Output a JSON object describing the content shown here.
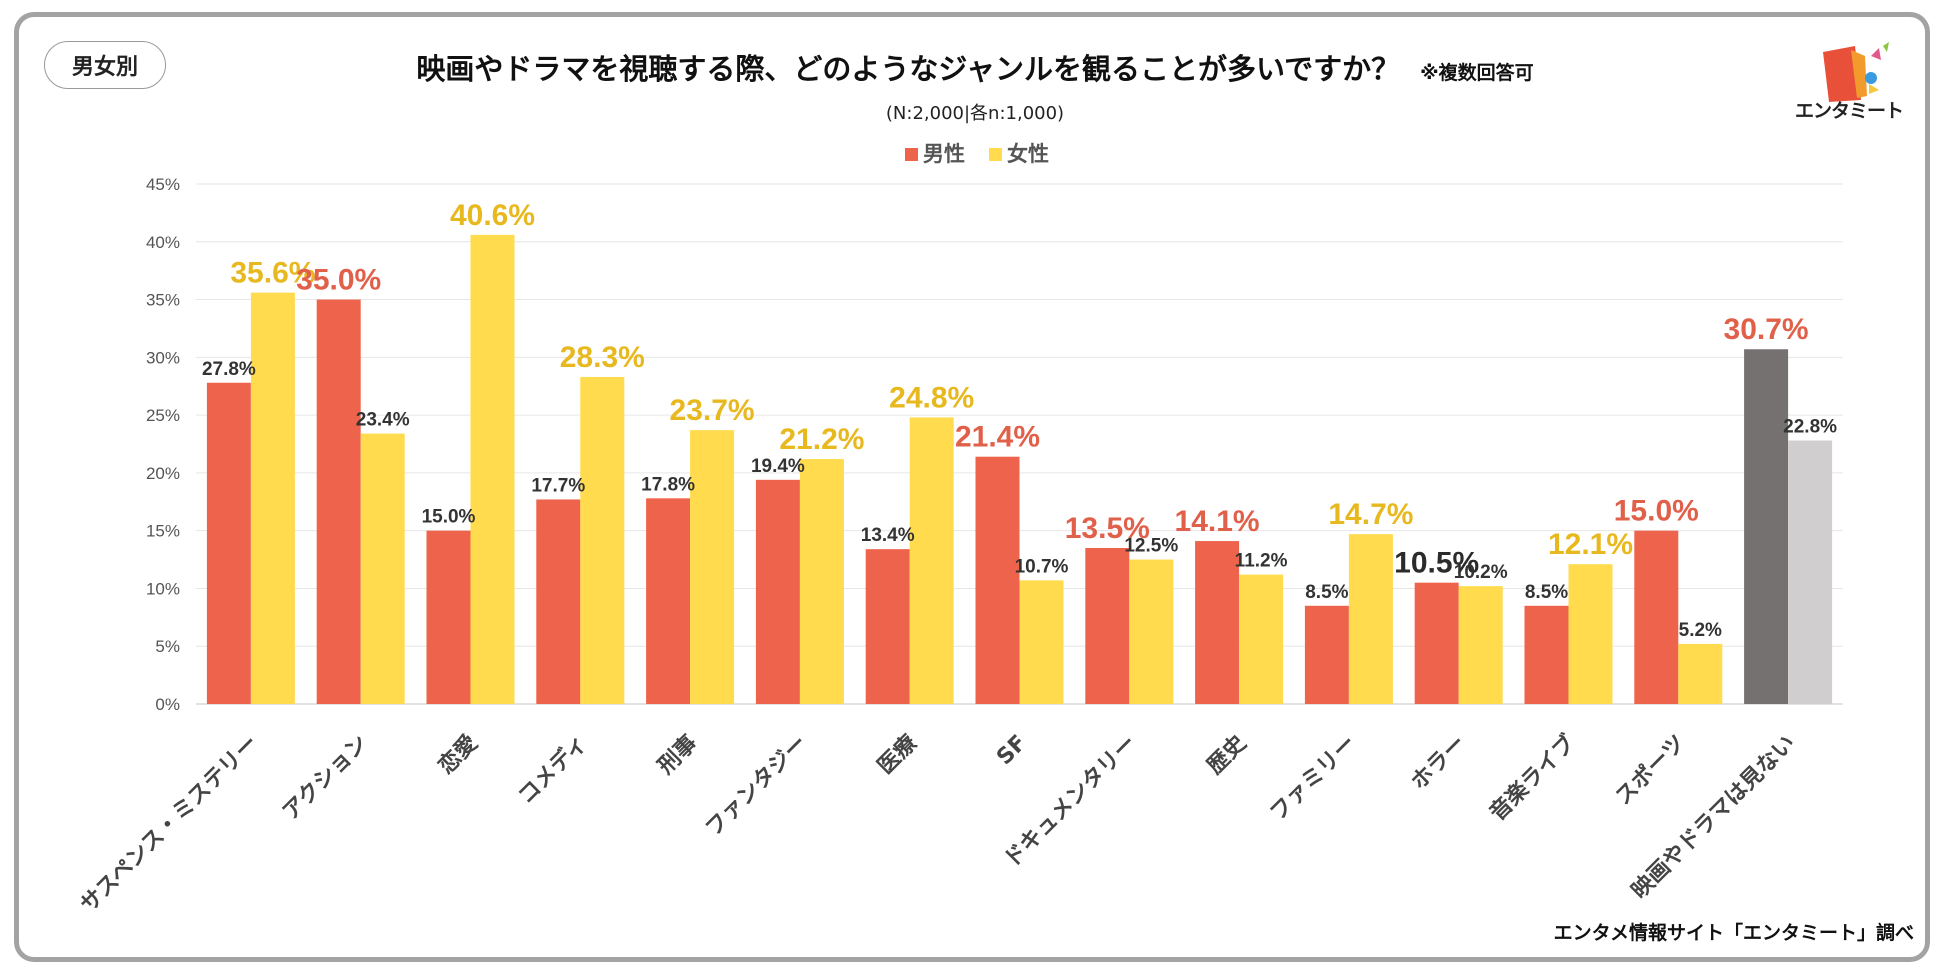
{
  "badge": "男女別",
  "title": "映画やドラマを視聴する際、どのようなジャンルを観ることが多いですか？",
  "title_note": "※複数回答可",
  "subtitle": "(N:2,000|各n:1,000)",
  "logo_text": "エンタミート",
  "source": "エンタメ情報サイト「エンタミート」調べ",
  "colors": {
    "male": "#ee634b",
    "female": "#ffdb4d",
    "male_none": "#767171",
    "female_none": "#d0cece",
    "highlight_male_label": "#e0604a",
    "highlight_female_label": "#e8b81f",
    "normal_label": "#333333"
  },
  "chart_data": {
    "type": "bar",
    "categories": [
      "サスペンス・ミステリー",
      "アクション",
      "恋愛",
      "コメディ",
      "刑事",
      "ファンタジー",
      "医療",
      "SF",
      "ドキュメンタリー",
      "歴史",
      "ファミリー",
      "ホラー",
      "音楽ライブ",
      "スポーツ",
      "映画やドラマは見ない"
    ],
    "series": [
      {
        "name": "男性",
        "values": [
          27.8,
          35.0,
          15.0,
          17.7,
          17.8,
          19.4,
          13.4,
          21.4,
          13.5,
          14.1,
          8.5,
          10.5,
          8.5,
          15.0,
          30.7
        ]
      },
      {
        "name": "女性",
        "values": [
          35.6,
          23.4,
          40.6,
          28.3,
          23.7,
          21.2,
          24.8,
          10.7,
          12.5,
          11.2,
          14.7,
          10.2,
          12.1,
          5.2,
          22.8
        ]
      }
    ],
    "data_labels": [
      [
        "27.8%",
        "35.6%"
      ],
      [
        "35.0%",
        "23.4%"
      ],
      [
        "15.0%",
        "40.6%"
      ],
      [
        "17.7%",
        "28.3%"
      ],
      [
        "17.8%",
        "23.7%"
      ],
      [
        "19.4%",
        "21.2%"
      ],
      [
        "13.4%",
        "24.8%"
      ],
      [
        "21.4%",
        "10.7%"
      ],
      [
        "13.5%",
        "12.5%"
      ],
      [
        "14.1%",
        "11.2%"
      ],
      [
        "8.5%",
        "14.7%"
      ],
      [
        "10.5%",
        "10.2%"
      ],
      [
        "8.5%",
        "12.1%"
      ],
      [
        "15.0%",
        "5.2%"
      ],
      [
        "30.7%",
        "22.8%"
      ]
    ],
    "highlight": [
      [
        "normal",
        "female"
      ],
      [
        "male",
        "normal"
      ],
      [
        "normal",
        "female"
      ],
      [
        "normal",
        "female"
      ],
      [
        "normal",
        "female"
      ],
      [
        "normal",
        "female"
      ],
      [
        "normal",
        "female"
      ],
      [
        "male",
        "normal"
      ],
      [
        "male",
        "normal"
      ],
      [
        "male",
        "normal"
      ],
      [
        "normal",
        "female"
      ],
      [
        "dark",
        "normal"
      ],
      [
        "normal",
        "female"
      ],
      [
        "male",
        "normal"
      ],
      [
        "male",
        "normal"
      ]
    ],
    "y_ticks": [
      "0%",
      "5%",
      "10%",
      "15%",
      "20%",
      "25%",
      "30%",
      "35%",
      "40%",
      "45%"
    ],
    "ylim": [
      0,
      45
    ],
    "grid": true,
    "legend": [
      "男性",
      "女性"
    ],
    "legend_position": "top-center"
  }
}
